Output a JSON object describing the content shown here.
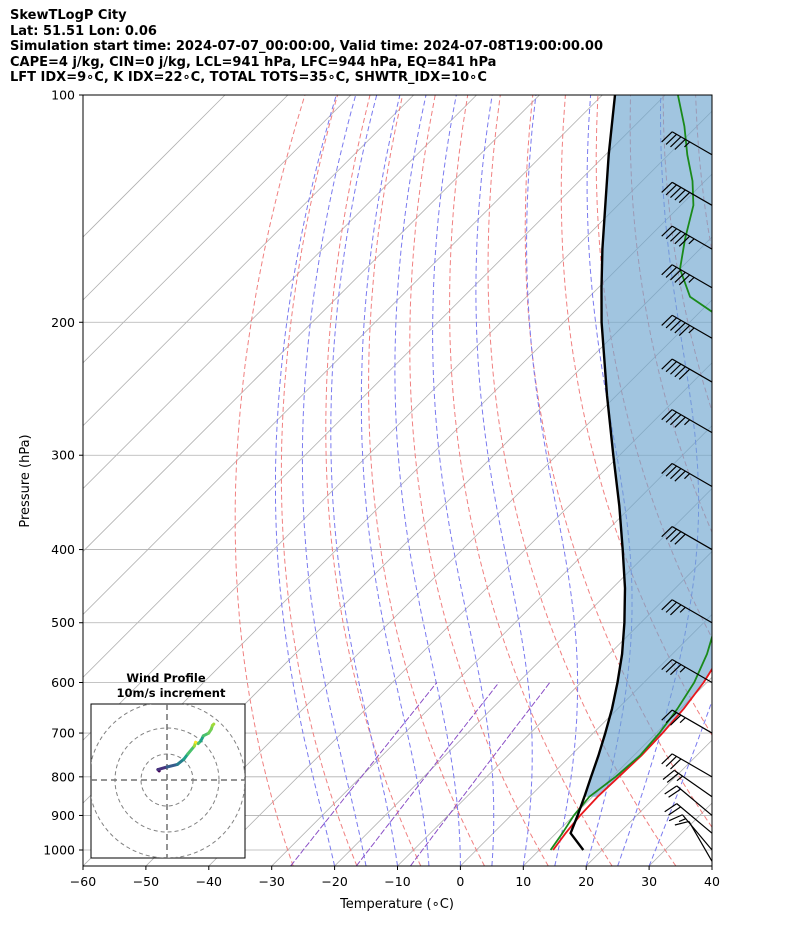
{
  "header": {
    "line1": "SkewTLogP City",
    "line2": "Lat: 51.51   Lon: 0.06",
    "line3": "Simulation start time: 2024-07-07_00:00:00, Valid time: 2024-07-08T19:00:00.00",
    "line4": "CAPE=4 j/kg, CIN=0 j/kg, LCL=941 hPa, LFC=944 hPa, EQ=841 hPa",
    "line5": "LFT IDX=9∘C, K IDX=22∘C, TOTAL TOTS=35∘C, SHWTR_IDX=10∘C"
  },
  "chart_data": {
    "type": "line",
    "subtype": "skewt-logp",
    "xlabel": "Temperature (∘C)",
    "ylabel": "Pressure (hPa)",
    "xlim": [
      -60,
      40
    ],
    "ylim": [
      1050,
      100
    ],
    "yscale": "log",
    "skew": "45 degree isotherms",
    "grid": true,
    "x_ticks": [
      -60,
      -50,
      -40,
      -30,
      -20,
      -10,
      0,
      10,
      20,
      30,
      40
    ],
    "y_ticks": [
      100,
      200,
      300,
      400,
      500,
      600,
      700,
      800,
      900,
      1000
    ],
    "colors": {
      "temperature": "#e8171c",
      "dewpoint": "#1a8a1a",
      "parcel": "#000000",
      "cape_fill": "#6fa6d0",
      "dry_adiabats": "#f08080",
      "moist_adiabats": "#7a7aef",
      "mixing_ratio": "#8a4fc6"
    },
    "series": [
      {
        "key": "temperature",
        "pressure": [
          1000,
          950,
          900,
          850,
          800,
          750,
          700,
          650,
          600,
          550,
          500,
          450,
          400,
          350,
          300,
          270,
          250,
          230,
          200,
          180,
          160,
          140,
          130,
          120,
          110,
          100
        ],
        "temperature": [
          12.2,
          11.5,
          11.0,
          10.8,
          11.0,
          11.2,
          11.0,
          10.5,
          9.5,
          7.8,
          5.5,
          2.5,
          -1.5,
          -7.0,
          -13.5,
          -18.5,
          -22.5,
          -25.5,
          -28.0,
          -31.5,
          -37.0,
          -41.5,
          -45.0,
          -47.0,
          -49.0,
          -52.5
        ]
      },
      {
        "key": "dewpoint",
        "pressure": [
          1000,
          950,
          900,
          850,
          800,
          750,
          700,
          650,
          600,
          550,
          500,
          450,
          400,
          350,
          300,
          270,
          250,
          230,
          200,
          185,
          170,
          155,
          140,
          130,
          120,
          110,
          100
        ],
        "temperature": [
          11.8,
          11.0,
          10.0,
          9.5,
          10.5,
          11.0,
          10.5,
          9.5,
          8.0,
          5.5,
          2.0,
          -2.5,
          -7.5,
          -14.0,
          -21.0,
          -28.0,
          -31.5,
          -36.5,
          -44.0,
          -54.0,
          -60.0,
          -64.0,
          -68.0,
          -72.0,
          -77.0,
          -82.0,
          -88.0
        ]
      },
      {
        "key": "parcel",
        "pressure": [
          1000,
          950,
          900,
          850,
          800,
          750,
          700,
          650,
          600,
          550,
          500,
          450,
          400,
          350,
          300,
          250,
          200,
          180,
          160,
          140,
          120,
          100
        ],
        "temperature": [
          17.0,
          12.3,
          10.6,
          8.7,
          6.6,
          4.4,
          1.9,
          -0.9,
          -4.2,
          -8.0,
          -12.6,
          -18.0,
          -24.5,
          -32.0,
          -41.0,
          -51.5,
          -64.0,
          -69.5,
          -75.5,
          -82.0,
          -89.5,
          -98.0
        ]
      }
    ],
    "dry_adiabats_theta_C": [
      -30,
      -20,
      -10,
      0,
      10,
      20,
      30,
      40,
      50,
      60,
      70,
      80,
      90
    ],
    "moist_adiabats_start_C": [
      -20,
      -15,
      -10,
      -5,
      0,
      5,
      10,
      15,
      20,
      25,
      30
    ],
    "mixing_ratio_gkg": [
      0.4,
      1,
      2
    ],
    "wind_barbs": {
      "pressure": [
        1035,
        1000,
        950,
        900,
        850,
        800,
        700,
        600,
        500,
        400,
        330,
        280,
        240,
        210,
        180,
        160,
        140,
        120
      ],
      "speed_kt": [
        10,
        15,
        20,
        20,
        25,
        30,
        35,
        35,
        35,
        40,
        45,
        45,
        50,
        55,
        55,
        55,
        50,
        45
      ],
      "direction_deg": [
        210,
        220,
        230,
        230,
        235,
        240,
        240,
        240,
        240,
        240,
        240,
        240,
        240,
        240,
        240,
        240,
        240,
        240
      ]
    },
    "inset": {
      "title": "Wind Profile",
      "subtitle": "10m/s increment",
      "type": "hodograph",
      "rings_ms": [
        10,
        20,
        30
      ],
      "u": [
        -3.0,
        -3.5,
        0,
        4,
        6.5,
        8,
        10.5,
        11,
        12,
        13,
        14,
        16,
        17,
        17.5,
        18
      ],
      "v": [
        3.5,
        4,
        5,
        6,
        8,
        10,
        13,
        14.5,
        14,
        15,
        17,
        18,
        19.5,
        21,
        21.5
      ]
    }
  }
}
